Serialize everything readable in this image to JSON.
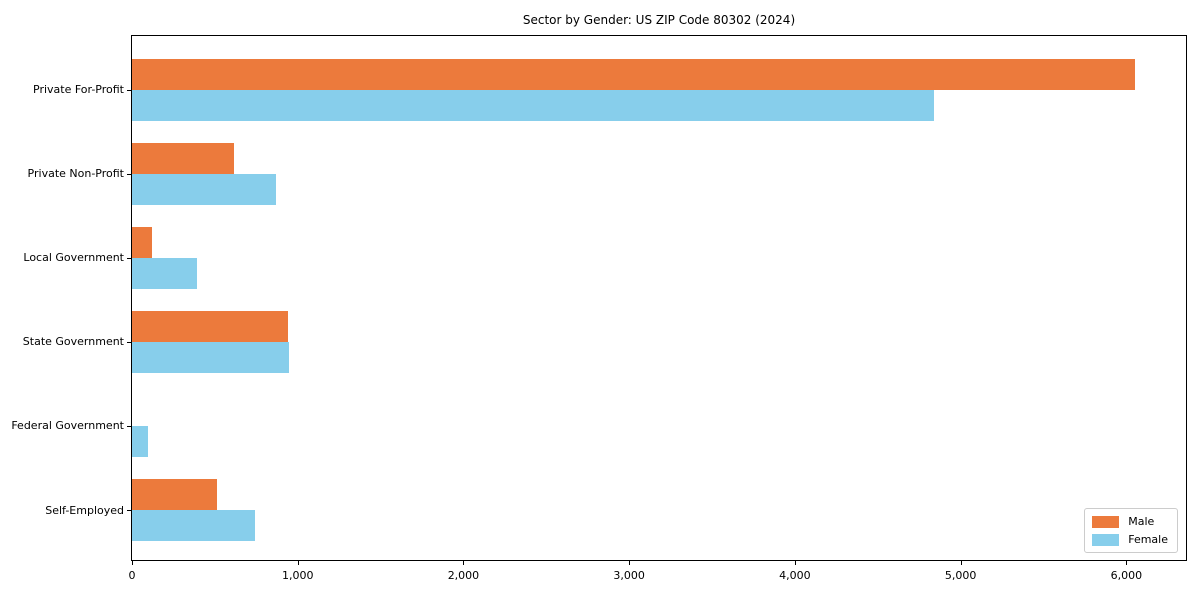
{
  "chart_data": {
    "type": "bar",
    "orientation": "horizontal",
    "title": "Sector by Gender: US ZIP Code 80302 (2024)",
    "categories": [
      "Private For-Profit",
      "Private Non-Profit",
      "Local Government",
      "State Government",
      "Federal Government",
      "Self-Employed"
    ],
    "series": [
      {
        "name": "Male",
        "color": "#ec7a3c",
        "values": [
          6050,
          615,
          120,
          940,
          0,
          510
        ]
      },
      {
        "name": "Female",
        "color": "#87ceeb",
        "values": [
          4840,
          870,
          390,
          950,
          95,
          740
        ]
      }
    ],
    "xlabel": "",
    "ylabel": "",
    "xlim": [
      0,
      6360
    ],
    "xticks": [
      0,
      1000,
      2000,
      3000,
      4000,
      5000,
      6000
    ],
    "xtick_labels": [
      "0",
      "1,000",
      "2,000",
      "3,000",
      "4,000",
      "5,000",
      "6,000"
    ],
    "grid": false,
    "legend_position": "lower-right"
  },
  "colors": {
    "axis": "#000000",
    "legend_border": "#cccccc",
    "background": "#ffffff"
  }
}
